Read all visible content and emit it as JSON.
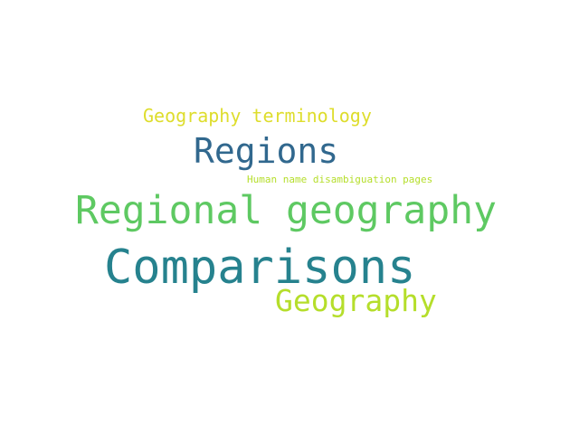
{
  "word_cloud": {
    "words": [
      {
        "text": "Geography terminology",
        "color": "#dedd2c"
      },
      {
        "text": "Regions",
        "color": "#31688e"
      },
      {
        "text": "Human name disambiguation pages",
        "color": "#b5de2b"
      },
      {
        "text": "Regional geography",
        "color": "#5ec962"
      },
      {
        "text": "Comparisons",
        "color": "#26828e"
      },
      {
        "text": "Geography",
        "color": "#b5de2b"
      }
    ]
  }
}
